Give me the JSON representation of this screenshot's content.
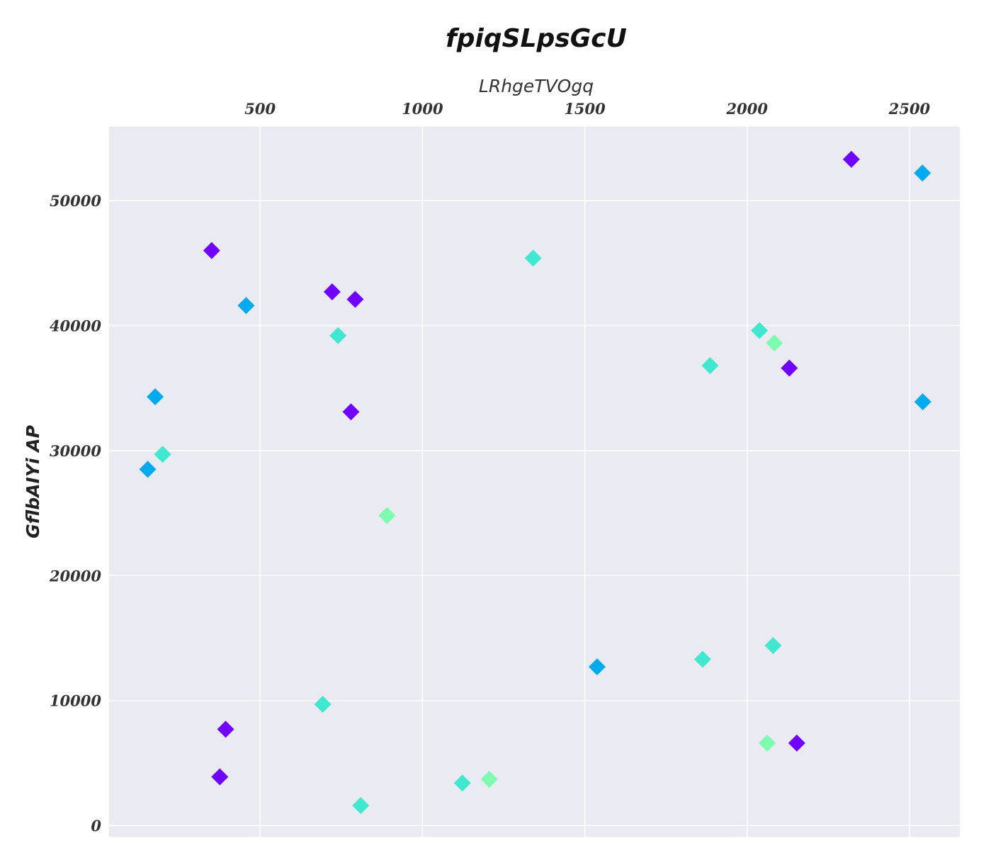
{
  "chart_data": {
    "type": "scatter",
    "title": "fpiqSLpsGcU",
    "xlabel": "LRhgeTVOgq",
    "ylabel": "GflbAIYi AP",
    "xlim": [
      35,
      2655
    ],
    "ylim": [
      -900,
      55900
    ],
    "x_ticks": [
      500,
      1000,
      1500,
      2000,
      2500
    ],
    "y_ticks": [
      0,
      10000,
      20000,
      30000,
      40000,
      50000
    ],
    "x_axis_position": "top",
    "grid": true,
    "background": "#eaeaf2",
    "marker": "diamond",
    "points": [
      {
        "x": 2321,
        "y": 53300,
        "color": "#7000ff"
      },
      {
        "x": 2540,
        "y": 52200,
        "color": "#00aaee"
      },
      {
        "x": 351,
        "y": 46000,
        "color": "#7000ff"
      },
      {
        "x": 1341,
        "y": 45400,
        "color": "#40e8d0"
      },
      {
        "x": 722,
        "y": 42700,
        "color": "#7000ff"
      },
      {
        "x": 793,
        "y": 42100,
        "color": "#7000ff"
      },
      {
        "x": 457,
        "y": 41600,
        "color": "#00aaee"
      },
      {
        "x": 2038,
        "y": 39600,
        "color": "#40e8d0"
      },
      {
        "x": 740,
        "y": 39200,
        "color": "#40e8d0"
      },
      {
        "x": 2084,
        "y": 38600,
        "color": "#7dfcb0"
      },
      {
        "x": 1886,
        "y": 36800,
        "color": "#40e8d0"
      },
      {
        "x": 2130,
        "y": 36600,
        "color": "#7000ff"
      },
      {
        "x": 177,
        "y": 34300,
        "color": "#00aaee"
      },
      {
        "x": 2541,
        "y": 33900,
        "color": "#00aaee"
      },
      {
        "x": 780,
        "y": 33100,
        "color": "#7000ff"
      },
      {
        "x": 200,
        "y": 29700,
        "color": "#40e8d0"
      },
      {
        "x": 154,
        "y": 28500,
        "color": "#00aaee"
      },
      {
        "x": 891,
        "y": 24800,
        "color": "#7dfcb0"
      },
      {
        "x": 2080,
        "y": 14400,
        "color": "#40e8d0"
      },
      {
        "x": 1863,
        "y": 13300,
        "color": "#40e8d0"
      },
      {
        "x": 1538,
        "y": 12700,
        "color": "#00aaee"
      },
      {
        "x": 693,
        "y": 9700,
        "color": "#40e8d0"
      },
      {
        "x": 394,
        "y": 7700,
        "color": "#7000ff"
      },
      {
        "x": 2062,
        "y": 6600,
        "color": "#7dfcb0"
      },
      {
        "x": 2153,
        "y": 6600,
        "color": "#7000ff"
      },
      {
        "x": 376,
        "y": 3900,
        "color": "#7000ff"
      },
      {
        "x": 1206,
        "y": 3700,
        "color": "#7dfcb0"
      },
      {
        "x": 1123,
        "y": 3400,
        "color": "#40e8d0"
      },
      {
        "x": 810,
        "y": 1600,
        "color": "#40e8d0"
      }
    ]
  }
}
